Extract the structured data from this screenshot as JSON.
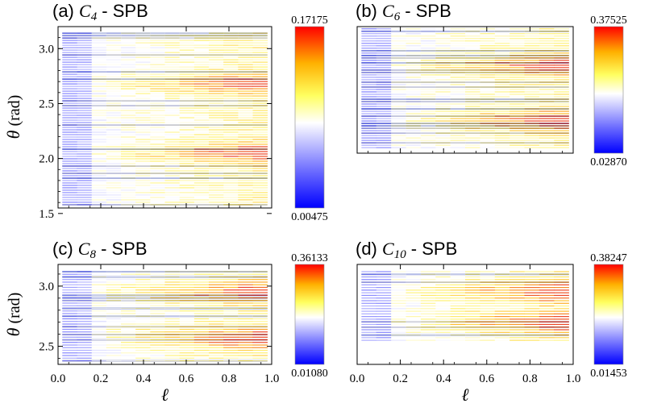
{
  "chart_data": [
    {
      "type": "heatmap",
      "panel": "(a)",
      "var_letter": "C",
      "subscript": "4",
      "suffix": " - SPB",
      "ylabel": "θ",
      "ylabel_unit": " (rad)",
      "xlabel": "",
      "xlim": [
        0,
        1
      ],
      "ylim": [
        1.55,
        3.2
      ],
      "yticks": [
        1.5,
        2.0,
        2.5,
        3.0
      ],
      "ytick_labels": [
        "1.5",
        "2.0",
        "2.5",
        "3.0"
      ],
      "xticks": [
        0,
        0.2,
        0.4,
        0.6,
        0.8,
        1.0
      ],
      "xtick_labels": [],
      "colorbar": {
        "max": "0.17175",
        "min": "0.00475"
      },
      "band_low": 1.58,
      "band_high": 3.14,
      "hot": [
        2.05,
        2.68
      ]
    },
    {
      "type": "heatmap",
      "panel": "(b)",
      "var_letter": "C",
      "subscript": "6",
      "suffix": " - SPB",
      "ylabel": "",
      "xlabel": "",
      "xlim": [
        0,
        1
      ],
      "ylim": [
        2.05,
        3.2
      ],
      "yticks": [],
      "ytick_labels": [],
      "xticks": [
        0,
        0.2,
        0.4,
        0.6,
        0.8,
        1.0
      ],
      "xtick_labels": [],
      "colorbar": {
        "max": "0.37525",
        "min": "0.02870"
      },
      "band_low": 2.1,
      "band_high": 3.18,
      "hot": [
        2.35,
        2.85
      ]
    },
    {
      "type": "heatmap",
      "panel": "(c)",
      "var_letter": "C",
      "subscript": "8",
      "suffix": " - SPB",
      "ylabel": "θ",
      "ylabel_unit": " (rad)",
      "xlabel": "ℓ",
      "xlim": [
        0,
        1
      ],
      "ylim": [
        2.35,
        3.18
      ],
      "yticks": [
        2.5,
        3.0
      ],
      "ytick_labels": [
        "2.5",
        "3.0"
      ],
      "xticks": [
        0,
        0.2,
        0.4,
        0.6,
        0.8,
        1.0
      ],
      "xtick_labels": [
        "0.0",
        "0.2",
        "0.4",
        "0.6",
        "0.8",
        "1.0"
      ],
      "colorbar": {
        "max": "0.36133",
        "min": "0.01080"
      },
      "band_low": 2.38,
      "band_high": 3.12,
      "hot": [
        2.57,
        2.95
      ]
    },
    {
      "type": "heatmap",
      "panel": "(d)",
      "var_letter": "C",
      "subscript": "10",
      "suffix": " - SPB",
      "ylabel": "",
      "xlabel": "ℓ",
      "xlim": [
        0,
        1
      ],
      "ylim": [
        2.35,
        3.18
      ],
      "yticks": [],
      "ytick_labels": [],
      "xticks": [
        0,
        0.2,
        0.4,
        0.6,
        0.8,
        1.0
      ],
      "xtick_labels": [
        "0.0",
        "0.2",
        "0.4",
        "0.6",
        "0.8",
        "1.0"
      ],
      "colorbar": {
        "max": "0.38247",
        "min": "0.01453"
      },
      "band_low": 2.55,
      "band_high": 3.12,
      "hot": [
        2.7,
        2.95
      ]
    }
  ]
}
